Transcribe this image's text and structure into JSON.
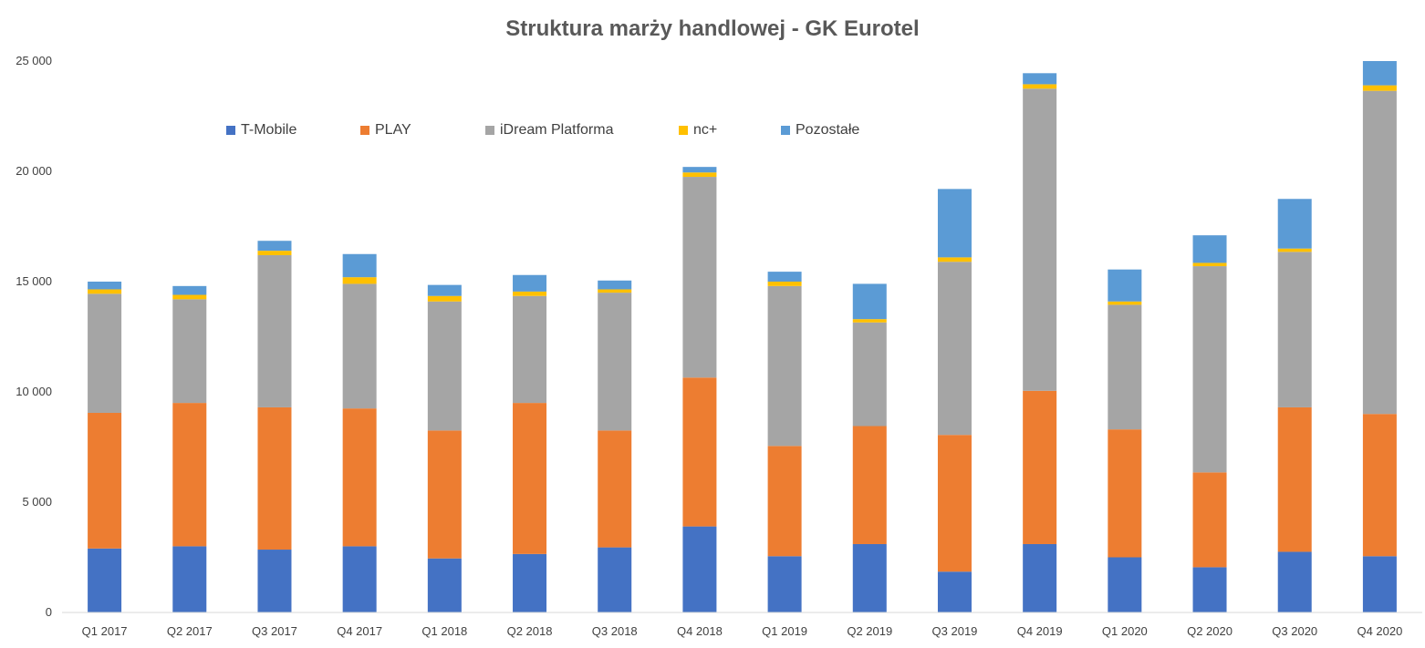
{
  "chart_data": {
    "type": "bar",
    "stacked": true,
    "title": "Struktura marży handlowej - GK Eurotel",
    "xlabel": "",
    "ylabel": "",
    "ylim": [
      0,
      25000
    ],
    "yticks": [
      0,
      5000,
      10000,
      15000,
      20000,
      25000
    ],
    "ytick_labels": [
      "0",
      "5 000",
      "10 000",
      "15 000",
      "20 000",
      "25 000"
    ],
    "grid": false,
    "legend_position": "top-left",
    "categories": [
      "Q1 2017",
      "Q2 2017",
      "Q3 2017",
      "Q4 2017",
      "Q1 2018",
      "Q2 2018",
      "Q3 2018",
      "Q4 2018",
      "Q1 2019",
      "Q2 2019",
      "Q3 2019",
      "Q4 2019",
      "Q1 2020",
      "Q2 2020",
      "Q3 2020",
      "Q4 2020"
    ],
    "series": [
      {
        "name": "T-Mobile",
        "color": "#4472C4",
        "values": [
          2900,
          3000,
          2850,
          3000,
          2450,
          2650,
          2950,
          3900,
          2550,
          3100,
          1850,
          3100,
          2500,
          2050,
          2750,
          2550
        ]
      },
      {
        "name": "PLAY",
        "color": "#ED7D31",
        "values": [
          6150,
          6500,
          6450,
          6250,
          5800,
          6850,
          5300,
          6750,
          5000,
          5350,
          6200,
          6950,
          5800,
          4300,
          6550,
          6450
        ]
      },
      {
        "name": "iDream Platforma",
        "color": "#A5A5A5",
        "values": [
          5400,
          4700,
          6900,
          5650,
          5850,
          4850,
          6250,
          9100,
          7250,
          4700,
          7850,
          13700,
          5650,
          9350,
          7050,
          14650
        ]
      },
      {
        "name": "nc+",
        "color": "#FFC000",
        "values": [
          200,
          200,
          200,
          300,
          250,
          200,
          150,
          200,
          200,
          150,
          200,
          200,
          150,
          150,
          150,
          250
        ]
      },
      {
        "name": "Pozostałe",
        "color": "#5B9BD5",
        "values": [
          350,
          400,
          450,
          1050,
          500,
          750,
          400,
          250,
          450,
          1600,
          3100,
          500,
          1450,
          1250,
          2250,
          1100
        ]
      }
    ]
  }
}
